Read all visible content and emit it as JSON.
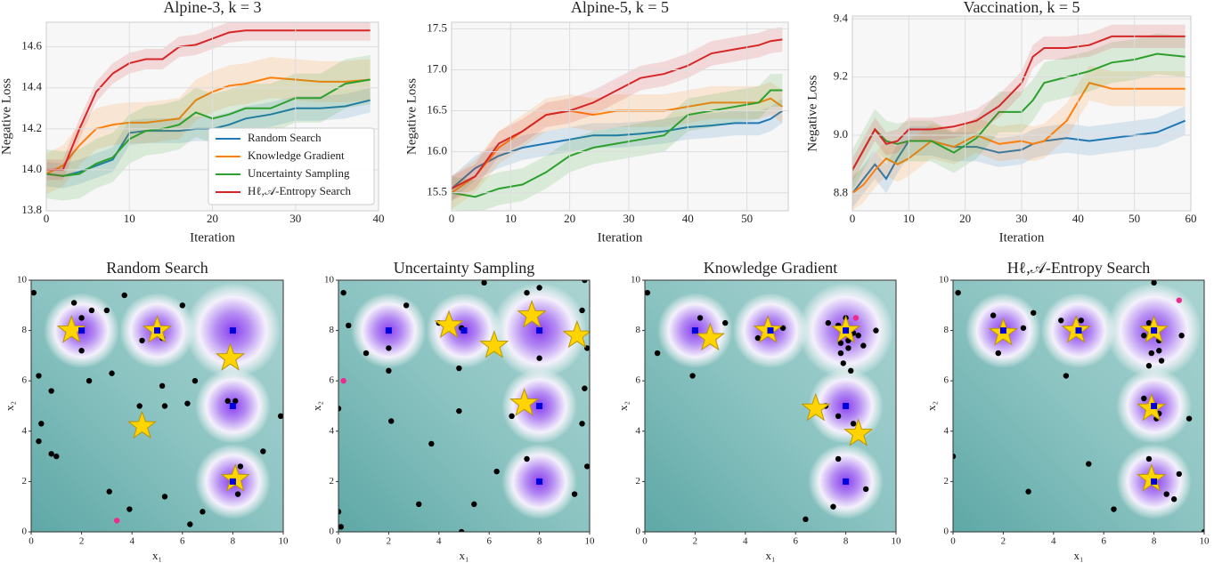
{
  "chart_data": [
    {
      "type": "line",
      "title": "Alpine-3, k = 3",
      "xlabel": "Iteration",
      "ylabel": "Negative Loss",
      "xlim": [
        0,
        40
      ],
      "xticks": [
        0,
        10,
        20,
        30,
        40
      ],
      "ylim": [
        13.8,
        14.72
      ],
      "yticks": [
        13.8,
        {
          "value": 14,
          "label": "14.0"
        },
        14.2,
        14.4,
        14.6
      ],
      "grid": true,
      "legend": "lower right",
      "x": [
        0,
        2,
        4,
        6,
        8,
        10,
        12,
        14,
        16,
        18,
        20,
        22,
        24,
        27,
        30,
        33,
        36,
        39
      ],
      "series": [
        {
          "name": "Random Search",
          "color": "#1f77b4",
          "error": 0.06,
          "values": [
            13.98,
            13.97,
            13.99,
            14.02,
            14.05,
            14.18,
            14.19,
            14.19,
            14.19,
            14.2,
            14.2,
            14.22,
            14.25,
            14.27,
            14.3,
            14.3,
            14.31,
            14.34
          ]
        },
        {
          "name": "Knowledge Gradient",
          "color": "#ff7f0e",
          "error": 0.1,
          "values": [
            13.98,
            14.02,
            14.12,
            14.2,
            14.22,
            14.23,
            14.23,
            14.24,
            14.25,
            14.34,
            14.38,
            14.41,
            14.42,
            14.45,
            14.44,
            14.43,
            14.43,
            14.44
          ]
        },
        {
          "name": "Uncertainty Sampling",
          "color": "#2ca02c",
          "error": 0.12,
          "values": [
            13.98,
            13.97,
            13.98,
            14.03,
            14.06,
            14.15,
            14.19,
            14.2,
            14.22,
            14.28,
            14.25,
            14.27,
            14.3,
            14.3,
            14.35,
            14.35,
            14.42,
            14.44
          ]
        },
        {
          "name": "Hℓ,𝒜-Entropy Search",
          "color": "#d62728",
          "error": 0.05,
          "values": [
            14.0,
            14.0,
            14.2,
            14.38,
            14.47,
            14.52,
            14.54,
            14.54,
            14.6,
            14.61,
            14.64,
            14.67,
            14.68,
            14.68,
            14.68,
            14.68,
            14.68,
            14.68
          ]
        }
      ]
    },
    {
      "type": "line",
      "title": "Alpine-5, k = 5",
      "xlabel": "Iteration",
      "ylabel": "Negative Loss",
      "xlim": [
        0,
        57
      ],
      "xticks": [
        0,
        10,
        20,
        30,
        40,
        50
      ],
      "ylim": [
        15.28,
        17.58
      ],
      "yticks": [
        15.5,
        {
          "value": 16,
          "label": "16.0"
        },
        16.5,
        {
          "value": 17,
          "label": "17.0"
        },
        17.5
      ],
      "grid": true,
      "x": [
        0,
        4,
        8,
        12,
        16,
        20,
        24,
        28,
        32,
        36,
        40,
        44,
        48,
        52,
        54,
        56
      ],
      "series": [
        {
          "color": "#1f77b4",
          "error": 0.15,
          "values": [
            15.55,
            15.8,
            15.95,
            16.05,
            16.1,
            16.15,
            16.2,
            16.2,
            16.22,
            16.25,
            16.3,
            16.32,
            16.35,
            16.35,
            16.4,
            16.5
          ]
        },
        {
          "color": "#ff7f0e",
          "error": 0.2,
          "values": [
            15.5,
            15.7,
            16.05,
            16.25,
            16.45,
            16.5,
            16.45,
            16.5,
            16.5,
            16.5,
            16.55,
            16.6,
            16.6,
            16.6,
            16.65,
            16.55
          ]
        },
        {
          "color": "#2ca02c",
          "error": 0.2,
          "values": [
            15.5,
            15.45,
            15.55,
            15.6,
            15.75,
            15.95,
            16.05,
            16.1,
            16.15,
            16.2,
            16.45,
            16.5,
            16.55,
            16.6,
            16.75,
            16.75
          ]
        },
        {
          "color": "#d62728",
          "error": 0.15,
          "values": [
            15.55,
            15.7,
            16.1,
            16.25,
            16.45,
            16.5,
            16.6,
            16.75,
            16.9,
            16.95,
            17.05,
            17.2,
            17.25,
            17.3,
            17.35,
            17.37
          ]
        }
      ]
    },
    {
      "type": "line",
      "title": "Vaccination, k = 5",
      "xlabel": "Iteration",
      "ylabel": "Negative Loss",
      "xlim": [
        0,
        60
      ],
      "xticks": [
        0,
        10,
        20,
        30,
        40,
        50,
        60
      ],
      "ylim": [
        8.74,
        9.41
      ],
      "yticks": [
        8.8,
        {
          "value": 9,
          "label": "9.0"
        },
        9.2,
        9.4
      ],
      "grid": true,
      "x": [
        0,
        2,
        4,
        6,
        8,
        10,
        14,
        18,
        22,
        26,
        30,
        32,
        34,
        38,
        42,
        46,
        50,
        54,
        59
      ],
      "series": [
        {
          "color": "#1f77b4",
          "error": 0.05,
          "values": [
            8.8,
            8.85,
            8.9,
            8.85,
            8.92,
            8.98,
            8.98,
            8.96,
            8.96,
            8.94,
            8.95,
            8.97,
            8.98,
            8.99,
            8.98,
            8.99,
            9.0,
            9.01,
            9.05
          ]
        },
        {
          "color": "#ff7f0e",
          "error": 0.06,
          "values": [
            8.8,
            8.83,
            8.88,
            8.92,
            8.9,
            8.92,
            8.98,
            8.96,
            9.0,
            8.97,
            8.98,
            8.97,
            8.98,
            9.05,
            9.18,
            9.16,
            9.16,
            9.16,
            9.16
          ]
        },
        {
          "color": "#2ca02c",
          "error": 0.07,
          "values": [
            8.88,
            8.95,
            9.02,
            8.98,
            8.97,
            8.98,
            8.98,
            8.94,
            8.99,
            9.08,
            9.08,
            9.12,
            9.18,
            9.2,
            9.22,
            9.25,
            9.26,
            9.28,
            9.27
          ]
        },
        {
          "color": "#d62728",
          "error": 0.04,
          "values": [
            8.88,
            8.95,
            9.02,
            8.97,
            8.98,
            9.02,
            9.02,
            9.03,
            9.05,
            9.1,
            9.18,
            9.27,
            9.3,
            9.3,
            9.31,
            9.34,
            9.34,
            9.34,
            9.34
          ]
        }
      ]
    },
    {
      "type": "scatter",
      "title": "Random Search",
      "xlabel": "x₁",
      "ylabel": "x₂",
      "xlim": [
        0,
        10
      ],
      "xticks": [
        0,
        2,
        4,
        6,
        8,
        10
      ],
      "ylim": [
        0,
        10
      ],
      "yticks": [
        0,
        2,
        4,
        6,
        8,
        10
      ],
      "series": [
        {
          "marker": "circle",
          "color": "#000000",
          "x": [
            0.1,
            1.7,
            2.0,
            1.5,
            2.0,
            2.4,
            3.0,
            3.7,
            4.4,
            5.2,
            6.0,
            0.3,
            0.8,
            2.3,
            3.2,
            4.3,
            5.2,
            5.3,
            6.2,
            6.5,
            7.8,
            8.1,
            9.9,
            0.4,
            0.3,
            0.8,
            1.0,
            3.1,
            3.9,
            5.3,
            6.8,
            8.2,
            8.3,
            9.2,
            6.3
          ],
          "y": [
            9.5,
            9.1,
            8.5,
            7.9,
            7.2,
            8.8,
            8.8,
            9.4,
            7.6,
            7.7,
            9.0,
            6.2,
            5.6,
            6.0,
            6.3,
            5.0,
            5.8,
            5.0,
            5.1,
            6.0,
            5.2,
            5.2,
            4.6,
            4.3,
            3.6,
            3.1,
            3.0,
            1.6,
            0.9,
            1.4,
            0.8,
            1.5,
            2.6,
            3.2,
            0.3
          ]
        },
        {
          "marker": "star",
          "color": "#ffd400",
          "x": [
            1.6,
            5.0,
            7.9,
            4.4,
            8.1
          ],
          "y": [
            8.0,
            8.0,
            6.9,
            4.2,
            2.1
          ]
        },
        {
          "marker": "square",
          "color": "#0000dd",
          "x": [
            2,
            5,
            8,
            8,
            8
          ],
          "y": [
            8,
            8,
            8,
            5,
            2
          ]
        },
        {
          "marker": "circle",
          "color": "#ee2a8c",
          "x": [
            3.4
          ],
          "y": [
            0.45
          ]
        }
      ]
    },
    {
      "type": "scatter",
      "title": "Uncertainty Sampling",
      "xlabel": "x₁",
      "ylabel": "x₂",
      "xlim": [
        0,
        10
      ],
      "xticks": [
        0,
        2,
        4,
        6,
        8,
        10
      ],
      "ylim": [
        0,
        10
      ],
      "yticks": [
        0,
        2,
        4,
        6,
        8,
        10
      ],
      "series": [
        {
          "marker": "circle",
          "color": "#000000",
          "x": [
            0.2,
            0.4,
            1.1,
            2.0,
            2.0,
            2.7,
            4.0,
            4.9,
            4.8,
            5.8,
            7.5,
            8.0,
            9.8,
            9.7,
            8.0,
            9.9,
            0.0,
            2.1,
            3.7,
            4.8,
            6.9,
            7.5,
            9.7,
            9.8,
            3.2,
            6.3,
            5.4,
            9.9,
            9.4,
            0.0,
            0.1,
            4.9
          ],
          "y": [
            9.5,
            8.2,
            7.1,
            7.3,
            6.4,
            9.0,
            8.3,
            8.1,
            6.5,
            9.9,
            9.5,
            9.7,
            10,
            8.8,
            6.9,
            7.3,
            4.9,
            4.4,
            3.5,
            4.8,
            4.6,
            2.9,
            4.3,
            5.7,
            1.1,
            2.4,
            1.1,
            2.6,
            1.5,
            0.8,
            0.2,
            0.0
          ]
        },
        {
          "marker": "star",
          "color": "#ffd400",
          "x": [
            4.4,
            7.7,
            6.2,
            9.5,
            7.4
          ],
          "y": [
            8.2,
            8.6,
            7.4,
            7.8,
            5.1
          ]
        },
        {
          "marker": "square",
          "color": "#0000dd",
          "x": [
            2,
            5,
            8,
            8,
            8
          ],
          "y": [
            8,
            8,
            8,
            5,
            2
          ]
        },
        {
          "marker": "circle",
          "color": "#ee2a8c",
          "x": [
            0.2
          ],
          "y": [
            6.0
          ]
        }
      ]
    },
    {
      "type": "scatter",
      "title": "Knowledge Gradient",
      "xlabel": "x₁",
      "ylabel": "x₂",
      "xlim": [
        0,
        10
      ],
      "xticks": [
        0,
        2,
        4,
        6,
        8,
        10
      ],
      "ylim": [
        0,
        10
      ],
      "yticks": [
        0,
        2,
        4,
        6,
        8,
        10
      ],
      "series": [
        {
          "marker": "circle",
          "color": "#000000",
          "x": [
            0.1,
            0.5,
            2.2,
            1.9,
            3.2,
            4.5,
            5.5,
            7.3,
            7.7,
            8.0,
            8.3,
            8.5,
            9.2,
            7.8,
            7.9,
            8.2,
            7.8,
            8.1,
            7.2,
            7.7,
            8.3,
            7.7,
            8.8,
            6.4,
            7.5,
            8.1,
            8.7
          ],
          "y": [
            9.5,
            7.1,
            8.5,
            6.2,
            8.3,
            7.7,
            8.1,
            8.3,
            8.2,
            8.5,
            7.9,
            7.8,
            8.0,
            7.1,
            6.7,
            6.4,
            7.5,
            7.3,
            5.0,
            4.6,
            4.3,
            2.9,
            1.7,
            0.5,
            1.0,
            7.6,
            7.4
          ]
        },
        {
          "marker": "star",
          "color": "#ffd400",
          "x": [
            2.6,
            4.9,
            8.0,
            6.8,
            8.5
          ],
          "y": [
            7.7,
            8.0,
            8.0,
            4.9,
            3.9
          ]
        },
        {
          "marker": "square",
          "color": "#0000dd",
          "x": [
            2,
            5,
            8,
            8,
            8
          ],
          "y": [
            8,
            8,
            8,
            5,
            2
          ]
        },
        {
          "marker": "circle",
          "color": "#ee2a8c",
          "x": [
            8.4
          ],
          "y": [
            8.5
          ]
        }
      ]
    },
    {
      "type": "scatter",
      "title": "Hℓ,𝒜-Entropy Search",
      "xlabel": "x₁",
      "ylabel": "x₂",
      "xlim": [
        0,
        10
      ],
      "xticks": [
        0,
        2,
        4,
        6,
        8,
        10
      ],
      "ylim": [
        0,
        10
      ],
      "yticks": [
        0,
        2,
        4,
        6,
        8,
        10
      ],
      "series": [
        {
          "marker": "circle",
          "color": "#000000",
          "x": [
            0.2,
            1.6,
            1.8,
            2.8,
            3.2,
            4.3,
            5.1,
            7.8,
            7.6,
            8.2,
            9.1,
            7.9,
            8.3,
            7.8,
            8.2,
            8.0,
            4.5,
            7.6,
            8.1,
            9.4,
            7.8,
            5.4,
            3.0,
            6.4,
            8.5,
            8.8,
            10,
            0,
            9.0,
            8.2
          ],
          "y": [
            9.5,
            8.6,
            7.1,
            8.1,
            8.7,
            8.4,
            8.4,
            8.3,
            7.8,
            7.6,
            7.8,
            7.1,
            6.8,
            6.6,
            7.2,
            9.9,
            6.2,
            5.3,
            4.5,
            4.5,
            2.9,
            2.7,
            1.6,
            0.9,
            1.5,
            1.3,
            0.0,
            3.0,
            2.3,
            4.7
          ]
        },
        {
          "marker": "star",
          "color": "#ffd400",
          "x": [
            2.0,
            4.9,
            8.0,
            7.9,
            7.9
          ],
          "y": [
            7.9,
            8.0,
            8.0,
            4.9,
            2.1
          ]
        },
        {
          "marker": "square",
          "color": "#0000dd",
          "x": [
            2,
            5,
            8,
            8,
            8
          ],
          "y": [
            8,
            8,
            8,
            5,
            2
          ]
        },
        {
          "marker": "circle",
          "color": "#ee2a8c",
          "x": [
            9.0
          ],
          "y": [
            9.2
          ]
        }
      ]
    }
  ]
}
